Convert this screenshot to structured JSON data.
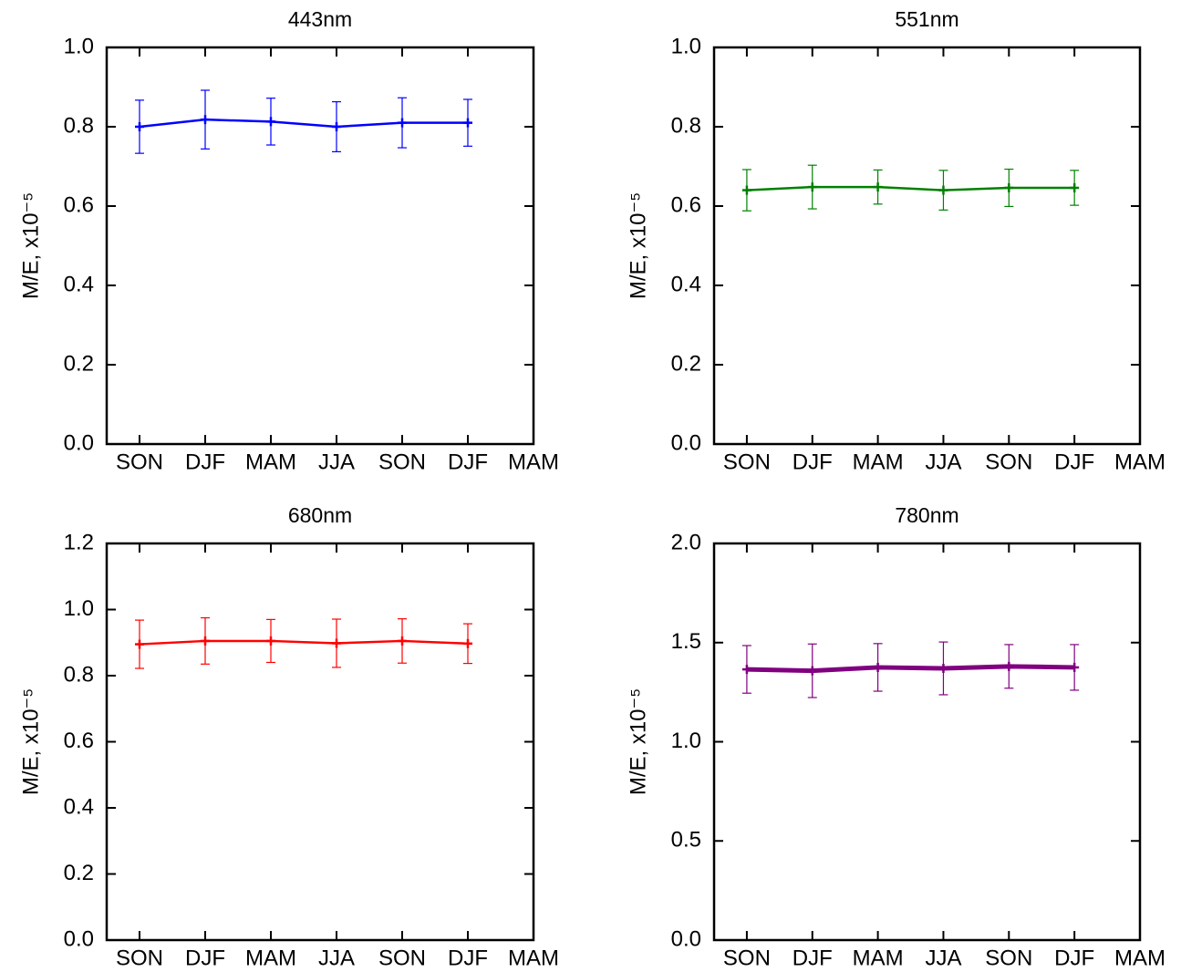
{
  "chart_data": [
    {
      "type": "line",
      "title": "443nm",
      "ylabel": "M/E, x10⁻⁵",
      "categories": [
        "SON",
        "DJF",
        "MAM",
        "JJA",
        "SON",
        "DJF",
        "MAM"
      ],
      "series": [
        {
          "name": "443nm",
          "color": "#0000ff",
          "line_width": 2.5,
          "values": [
            0.8,
            0.818,
            0.813,
            0.8,
            0.81,
            0.81,
            null
          ],
          "errors": [
            0.067,
            0.074,
            0.059,
            0.063,
            0.063,
            0.059,
            null
          ]
        }
      ],
      "ylim": [
        0,
        1
      ],
      "yticks": [
        {
          "value": 0,
          "label": "0.0"
        },
        0.2,
        0.4,
        0.6,
        0.8,
        {
          "value": 1,
          "label": "1.0"
        }
      ]
    },
    {
      "type": "line",
      "title": "551nm",
      "ylabel": "M/E, x10⁻⁵",
      "categories": [
        "SON",
        "DJF",
        "MAM",
        "JJA",
        "SON",
        "DJF",
        "MAM"
      ],
      "series": [
        {
          "name": "551nm",
          "color": "#008000",
          "line_width": 2.5,
          "values": [
            0.64,
            0.648,
            0.648,
            0.64,
            0.646,
            0.646,
            null
          ],
          "errors": [
            0.052,
            0.055,
            0.043,
            0.05,
            0.047,
            0.044,
            null
          ]
        }
      ],
      "ylim": [
        0,
        1
      ],
      "yticks": [
        {
          "value": 0,
          "label": "0.0"
        },
        0.2,
        0.4,
        0.6,
        0.8,
        {
          "value": 1,
          "label": "1.0"
        }
      ]
    },
    {
      "type": "line",
      "title": "680nm",
      "ylabel": "M/E, x10⁻⁵",
      "categories": [
        "SON",
        "DJF",
        "MAM",
        "JJA",
        "SON",
        "DJF",
        "MAM"
      ],
      "series": [
        {
          "name": "680nm",
          "color": "#ff0000",
          "line_width": 2.5,
          "values": [
            0.895,
            0.905,
            0.905,
            0.898,
            0.905,
            0.897,
            null
          ],
          "errors": [
            0.073,
            0.07,
            0.065,
            0.073,
            0.067,
            0.06,
            null
          ]
        }
      ],
      "ylim": [
        0,
        1.2
      ],
      "yticks": [
        {
          "value": 0,
          "label": "0.0"
        },
        0.2,
        0.4,
        0.6,
        0.8,
        {
          "value": 1,
          "label": "1.0"
        },
        1.2
      ]
    },
    {
      "type": "line",
      "title": "780nm",
      "ylabel": "M/E, x10⁻⁵",
      "categories": [
        "SON",
        "DJF",
        "MAM",
        "JJA",
        "SON",
        "DJF",
        "MAM"
      ],
      "series": [
        {
          "name": "780nm",
          "color": "#800080",
          "line_width": 5,
          "values": [
            1.365,
            1.358,
            1.375,
            1.37,
            1.38,
            1.375,
            null
          ],
          "errors": [
            0.12,
            0.135,
            0.12,
            0.133,
            0.11,
            0.115,
            null
          ]
        }
      ],
      "ylim": [
        0,
        2
      ],
      "yticks": [
        {
          "value": 0,
          "label": "0.0"
        },
        0.5,
        {
          "value": 1,
          "label": "1.0"
        },
        1.5,
        {
          "value": 2,
          "label": "2.0"
        }
      ]
    }
  ]
}
